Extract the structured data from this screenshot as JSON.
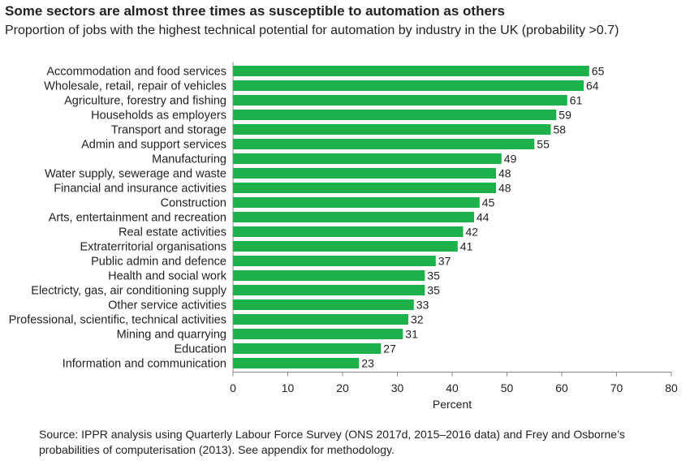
{
  "title": "Some sectors are almost three times as susceptible to automation as others",
  "subtitle": "Proportion of jobs with the highest technical potential for automation by industry in the UK (probability >0.7)",
  "source": "Source: IPPR analysis using Quarterly Labour Force Survey (ONS 2017d, 2015–2016 data) and Frey and Osborne’s probabilities of computerisation (2013). See appendix for methodology.",
  "colors": {
    "bar": "#1eb14b",
    "axis": "#888888",
    "text": "#222222"
  },
  "chart_data": {
    "type": "bar",
    "orientation": "horizontal",
    "categories": [
      "Accommodation and food services",
      "Wholesale, retail, repair of vehicles",
      "Agriculture, forestry and fishing",
      "Households as employers",
      "Transport and storage",
      "Admin and support services",
      "Manufacturing",
      "Water supply, sewerage and waste",
      "Financial and insurance activities",
      "Construction",
      "Arts, entertainment and recreation",
      "Real estate activities",
      "Extraterritorial organisations",
      "Public admin and defence",
      "Health and social work",
      "Electricty, gas, air conditioning supply",
      "Other service activities",
      "Professional, scientific, technical activities",
      "Mining and quarrying",
      "Education",
      "Information and communication"
    ],
    "values": [
      65,
      64,
      61,
      59,
      58,
      55,
      49,
      48,
      48,
      45,
      44,
      42,
      41,
      37,
      35,
      35,
      33,
      32,
      31,
      27,
      23
    ],
    "xlabel": "Percent",
    "xlim": [
      0,
      80
    ],
    "xticks": [
      0,
      10,
      20,
      30,
      40,
      50,
      60,
      70,
      80
    ],
    "grid": false,
    "data_labels": true
  }
}
